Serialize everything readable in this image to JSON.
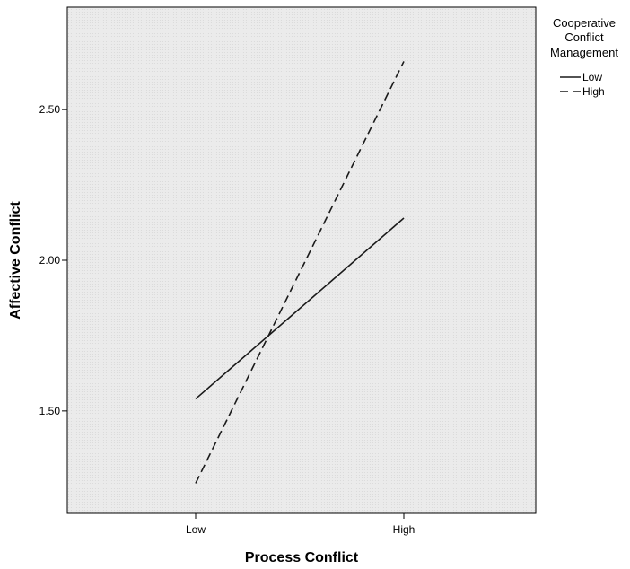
{
  "chart_data": {
    "type": "line",
    "x_categories": [
      "Low",
      "High"
    ],
    "xlabel": "Process Conflict",
    "ylabel": "Affective Conflict",
    "ylim": [
      1.16,
      2.84
    ],
    "yticks": [
      "1.50",
      "2.00",
      "2.50"
    ],
    "grid": false,
    "legend": {
      "title_lines": [
        "Cooperative",
        "Conflict",
        "Management"
      ],
      "placement": "right"
    },
    "series": [
      {
        "name": "Low",
        "style": "solid",
        "values": [
          1.54,
          2.14
        ]
      },
      {
        "name": "High",
        "style": "dashed",
        "values": [
          1.26,
          2.66
        ]
      }
    ],
    "colors": {
      "plot_background": "#ececec",
      "line": "#1a1a1a"
    }
  }
}
